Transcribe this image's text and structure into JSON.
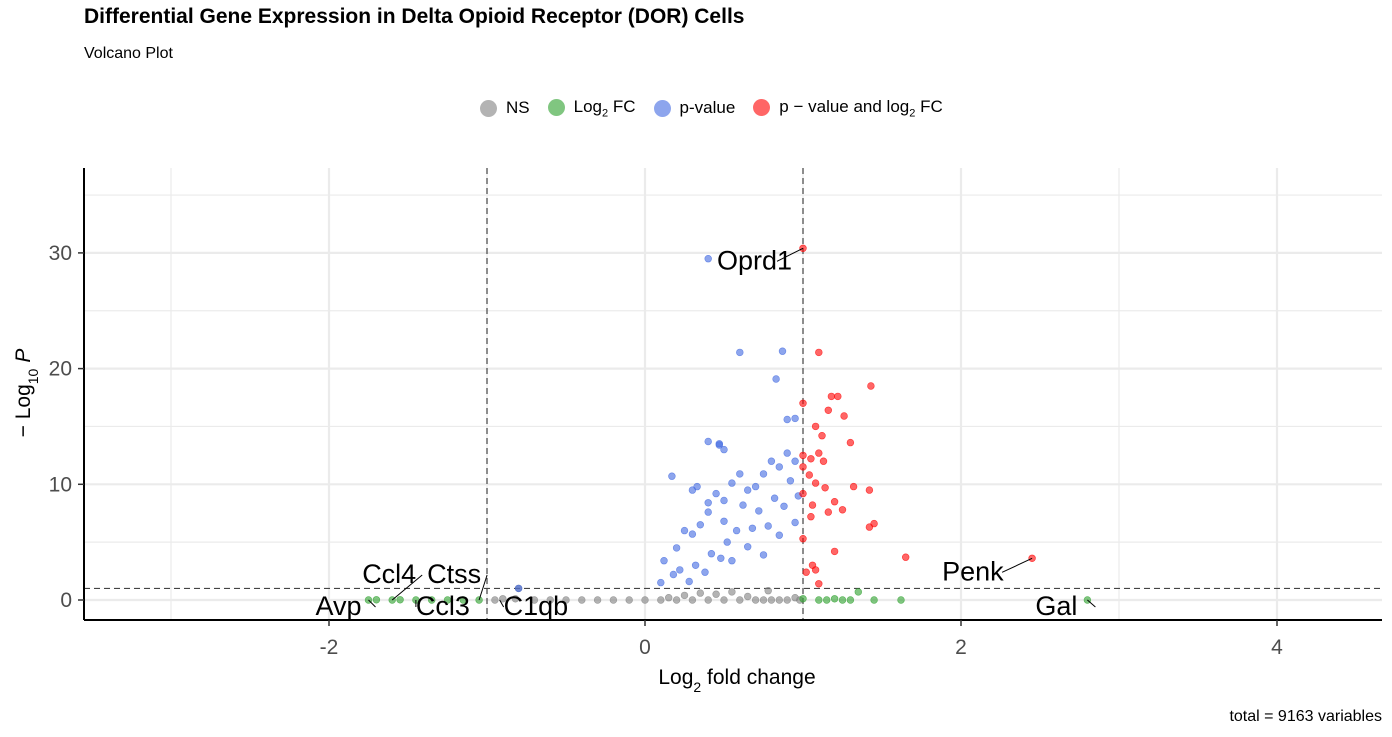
{
  "header": {
    "title": "Differential Gene Expression in Delta Opioid Receptor (DOR) Cells",
    "subtitle": "Volcano Plot",
    "caption": "total = 9163 variables"
  },
  "legend": [
    {
      "label": "NS",
      "sub": "",
      "rest": "",
      "color": "#808080"
    },
    {
      "label": "Log",
      "sub": "2",
      "rest": " FC",
      "color": "#2ca02c"
    },
    {
      "label": "p-value",
      "sub": "",
      "rest": "",
      "color": "#4169e1"
    },
    {
      "label": "p − value and log",
      "sub": "2",
      "rest": " FC",
      "color": "#ff0000"
    }
  ],
  "axes": {
    "xlabel_main": "Log",
    "xlabel_sub": "2",
    "xlabel_rest": " fold change",
    "ylabel_prefix": "− Log",
    "ylabel_sub": "10",
    "ylabel_var": "P"
  },
  "chart_data": {
    "type": "scatter",
    "title": "Differential Gene Expression in Delta Opioid Receptor (DOR) Cells",
    "subtitle": "Volcano Plot",
    "xlim": [
      -3.5,
      4.7
    ],
    "ylim": [
      -1.7,
      37
    ],
    "x_ticks": [
      -2,
      0,
      2,
      4
    ],
    "y_ticks": [
      0,
      10,
      20,
      30
    ],
    "fc_cutoff": 1,
    "p_cutoff_log10": 1,
    "grid": true,
    "legend_position": "top",
    "total_variables": 9163,
    "labeled_genes": [
      {
        "name": "Oprd1",
        "x": 1.0,
        "y": 30.4,
        "group": "p-value and log2 FC"
      },
      {
        "name": "Penk",
        "x": 2.45,
        "y": 3.6,
        "group": "p-value and log2 FC"
      },
      {
        "name": "Gal",
        "x": 2.8,
        "y": 0.0,
        "group": "Log2 FC"
      },
      {
        "name": "Avp",
        "x": -1.75,
        "y": 0.0,
        "group": "Log2 FC"
      },
      {
        "name": "Ccl4",
        "x": -1.6,
        "y": 0.0,
        "group": "Log2 FC"
      },
      {
        "name": "Ccl3",
        "x": -1.45,
        "y": 0.0,
        "group": "Log2 FC"
      },
      {
        "name": "Ctss",
        "x": -1.05,
        "y": 0.0,
        "group": "Log2 FC"
      },
      {
        "name": "C1qb",
        "x": -0.92,
        "y": 0.0,
        "group": "NS"
      }
    ],
    "series": [
      {
        "name": "NS",
        "color": "#808080",
        "points": [
          [
            -0.95,
            0
          ],
          [
            -0.9,
            0.1
          ],
          [
            -0.82,
            0.1
          ],
          [
            -0.8,
            1.0
          ],
          [
            -0.7,
            0
          ],
          [
            -0.6,
            0
          ],
          [
            -0.5,
            0
          ],
          [
            -0.4,
            0
          ],
          [
            -0.3,
            0
          ],
          [
            -0.2,
            0
          ],
          [
            -0.1,
            0
          ],
          [
            0.0,
            0
          ],
          [
            0.1,
            0
          ],
          [
            0.15,
            0.2
          ],
          [
            0.2,
            0
          ],
          [
            0.25,
            0.4
          ],
          [
            0.3,
            0
          ],
          [
            0.35,
            0.6
          ],
          [
            0.4,
            0
          ],
          [
            0.45,
            0.5
          ],
          [
            0.5,
            0
          ],
          [
            0.55,
            0.7
          ],
          [
            0.6,
            0
          ],
          [
            0.65,
            0.3
          ],
          [
            0.7,
            0
          ],
          [
            0.75,
            0
          ],
          [
            0.78,
            0.8
          ],
          [
            0.8,
            0
          ],
          [
            0.85,
            0
          ],
          [
            0.9,
            0
          ],
          [
            0.95,
            0.2
          ],
          [
            0.98,
            0
          ]
        ]
      },
      {
        "name": "Log2 FC",
        "color": "#2ca02c",
        "points": [
          [
            -1.75,
            0
          ],
          [
            -1.7,
            0.02
          ],
          [
            -1.6,
            0
          ],
          [
            -1.55,
            0.02
          ],
          [
            -1.45,
            0
          ],
          [
            -1.35,
            0
          ],
          [
            -1.25,
            0
          ],
          [
            -1.15,
            0
          ],
          [
            -1.05,
            0
          ],
          [
            1.0,
            0.1
          ],
          [
            1.1,
            0
          ],
          [
            1.15,
            0
          ],
          [
            1.2,
            0.1
          ],
          [
            1.25,
            0
          ],
          [
            1.3,
            0
          ],
          [
            1.35,
            0.7
          ],
          [
            1.45,
            0
          ],
          [
            1.62,
            0
          ],
          [
            2.8,
            0
          ]
        ]
      },
      {
        "name": "p-value",
        "color": "#4169e1",
        "points": [
          [
            0.4,
            29.5
          ],
          [
            0.6,
            21.4
          ],
          [
            0.87,
            21.5
          ],
          [
            0.83,
            19.1
          ],
          [
            0.95,
            15.7
          ],
          [
            0.9,
            15.6
          ],
          [
            0.4,
            13.7
          ],
          [
            0.47,
            13.4
          ],
          [
            0.5,
            13.0
          ],
          [
            0.47,
            13.5
          ],
          [
            0.17,
            10.7
          ],
          [
            0.25,
            6.0
          ],
          [
            0.3,
            9.5
          ],
          [
            0.33,
            9.8
          ],
          [
            0.35,
            6.5
          ],
          [
            0.4,
            8.4
          ],
          [
            0.45,
            9.2
          ],
          [
            0.5,
            8.6
          ],
          [
            0.55,
            10.1
          ],
          [
            0.6,
            10.9
          ],
          [
            0.65,
            9.5
          ],
          [
            0.7,
            9.8
          ],
          [
            0.75,
            10.9
          ],
          [
            0.8,
            12.0
          ],
          [
            0.85,
            11.5
          ],
          [
            0.9,
            12.7
          ],
          [
            0.95,
            12.0
          ],
          [
            0.2,
            4.5
          ],
          [
            0.3,
            5.7
          ],
          [
            0.4,
            7.6
          ],
          [
            0.5,
            6.8
          ],
          [
            0.55,
            3.4
          ],
          [
            0.62,
            8.2
          ],
          [
            0.72,
            7.7
          ],
          [
            0.82,
            8.8
          ],
          [
            0.92,
            10.3
          ],
          [
            0.12,
            3.4
          ],
          [
            0.22,
            2.6
          ],
          [
            0.32,
            3.0
          ],
          [
            0.42,
            4.0
          ],
          [
            0.52,
            5.0
          ],
          [
            0.58,
            6.0
          ],
          [
            0.68,
            6.2
          ],
          [
            0.78,
            6.4
          ],
          [
            0.88,
            8.1
          ],
          [
            0.97,
            9.0
          ],
          [
            0.1,
            1.5
          ],
          [
            0.18,
            2.2
          ],
          [
            0.28,
            1.6
          ],
          [
            0.38,
            2.4
          ],
          [
            0.48,
            3.6
          ],
          [
            0.65,
            4.6
          ],
          [
            0.75,
            3.9
          ],
          [
            0.85,
            5.6
          ],
          [
            0.95,
            6.7
          ],
          [
            -0.8,
            1.0
          ]
        ]
      },
      {
        "name": "p-value and log2 FC",
        "color": "#ff0000",
        "points": [
          [
            1.0,
            30.4
          ],
          [
            1.1,
            21.4
          ],
          [
            1.43,
            18.5
          ],
          [
            1.18,
            17.6
          ],
          [
            1.22,
            17.6
          ],
          [
            1.0,
            17.0
          ],
          [
            1.16,
            16.4
          ],
          [
            1.26,
            15.9
          ],
          [
            1.08,
            15.0
          ],
          [
            1.12,
            14.2
          ],
          [
            1.3,
            13.6
          ],
          [
            1.0,
            12.5
          ],
          [
            1.05,
            12.2
          ],
          [
            1.1,
            12.7
          ],
          [
            1.13,
            12.0
          ],
          [
            1.0,
            11.5
          ],
          [
            1.04,
            10.8
          ],
          [
            1.08,
            10.1
          ],
          [
            1.14,
            9.7
          ],
          [
            1.2,
            8.5
          ],
          [
            1.25,
            7.8
          ],
          [
            1.32,
            9.8
          ],
          [
            1.42,
            9.5
          ],
          [
            1.0,
            9.2
          ],
          [
            1.06,
            8.2
          ],
          [
            1.16,
            7.6
          ],
          [
            1.45,
            6.6
          ],
          [
            1.42,
            6.3
          ],
          [
            1.05,
            7.2
          ],
          [
            1.0,
            5.3
          ],
          [
            1.2,
            4.2
          ],
          [
            1.65,
            3.7
          ],
          [
            1.06,
            3.0
          ],
          [
            1.1,
            1.4
          ],
          [
            2.45,
            3.6
          ],
          [
            1.02,
            2.4
          ],
          [
            1.08,
            2.6
          ]
        ]
      }
    ]
  }
}
